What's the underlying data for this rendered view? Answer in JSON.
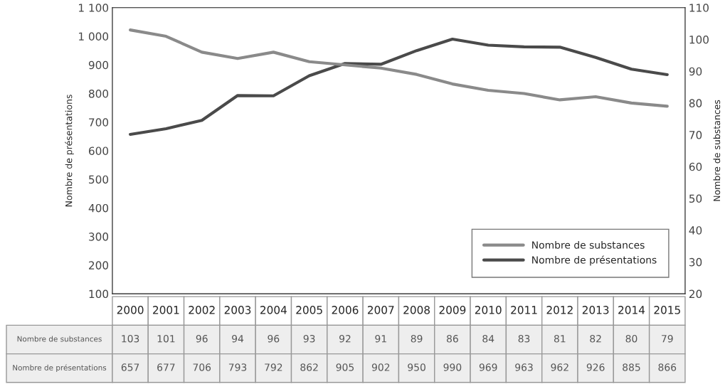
{
  "chart_data": {
    "type": "line",
    "categories": [
      "2000",
      "2001",
      "2002",
      "2003",
      "2004",
      "2005",
      "2006",
      "2007",
      "2008",
      "2009",
      "2010",
      "2011",
      "2012",
      "2013",
      "2014",
      "2015"
    ],
    "ylabel": "Nombre de présentations",
    "y2label": "Nombre de substances",
    "series": [
      {
        "name": "Nombre de substances",
        "color": "#8a8a8a",
        "axis": "y2",
        "values": [
          103,
          101,
          96,
          94,
          96,
          93,
          92,
          91,
          89,
          86,
          84,
          83,
          81,
          82,
          80,
          79
        ]
      },
      {
        "name": "Nombre de présentations",
        "color": "#4a4a4a",
        "axis": "y",
        "values": [
          657,
          677,
          706,
          793,
          792,
          862,
          905,
          902,
          950,
          990,
          969,
          963,
          962,
          926,
          885,
          866
        ]
      }
    ],
    "ylim": [
      100,
      1100
    ],
    "yticks": [
      100,
      200,
      300,
      400,
      500,
      600,
      700,
      800,
      900,
      {
        "value": 1000,
        "label": "1 000"
      },
      {
        "value": 1100,
        "label": "1 100"
      }
    ],
    "y2lim": [
      20,
      110
    ],
    "y2ticks": [
      20,
      30,
      40,
      50,
      60,
      70,
      80,
      90,
      100,
      110
    ],
    "data_labels": true,
    "legend": "bottom right",
    "grid": false,
    "marker": "none",
    "line_style": "solid"
  }
}
